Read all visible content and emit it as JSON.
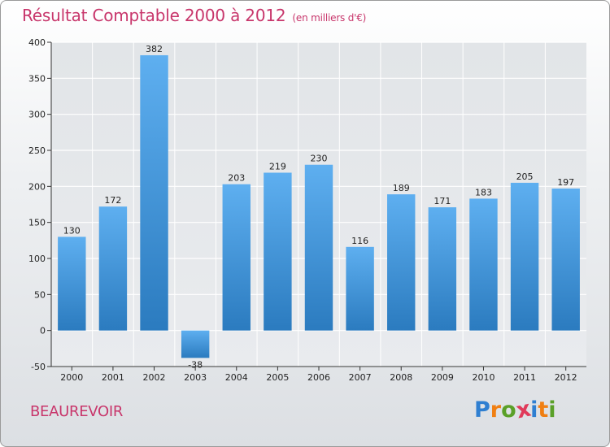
{
  "title": "Résultat Comptable 2000 à 2012",
  "subtitle": "(en milliers d'€)",
  "location": "BEAUREVOIR",
  "logo": {
    "letters": [
      "P",
      "r",
      "o",
      "x",
      "i",
      "t",
      "i"
    ],
    "colors": [
      "#2f7fd1",
      "#f07f12",
      "#5aa028",
      "#e03a5a",
      "#2f7fd1",
      "#f07f12",
      "#5aa028"
    ]
  },
  "colors": {
    "title": "#c8366b",
    "bar_dark": "#2b7bbf",
    "bar_light": "#5eaff0",
    "grid": "#ffffff",
    "axis": "#333333"
  },
  "chart_data": {
    "type": "bar",
    "title": "Résultat Comptable 2000 à 2012",
    "xlabel": "",
    "ylabel": "",
    "ylim": [
      -50,
      400
    ],
    "yticks": [
      -50,
      0,
      50,
      100,
      150,
      200,
      250,
      300,
      350,
      400
    ],
    "grid": true,
    "categories": [
      "2000",
      "2001",
      "2002",
      "2003",
      "2004",
      "2005",
      "2006",
      "2007",
      "2008",
      "2009",
      "2010",
      "2011",
      "2012"
    ],
    "values": [
      130,
      172,
      382,
      -38,
      203,
      219,
      230,
      116,
      189,
      171,
      183,
      205,
      197
    ]
  }
}
